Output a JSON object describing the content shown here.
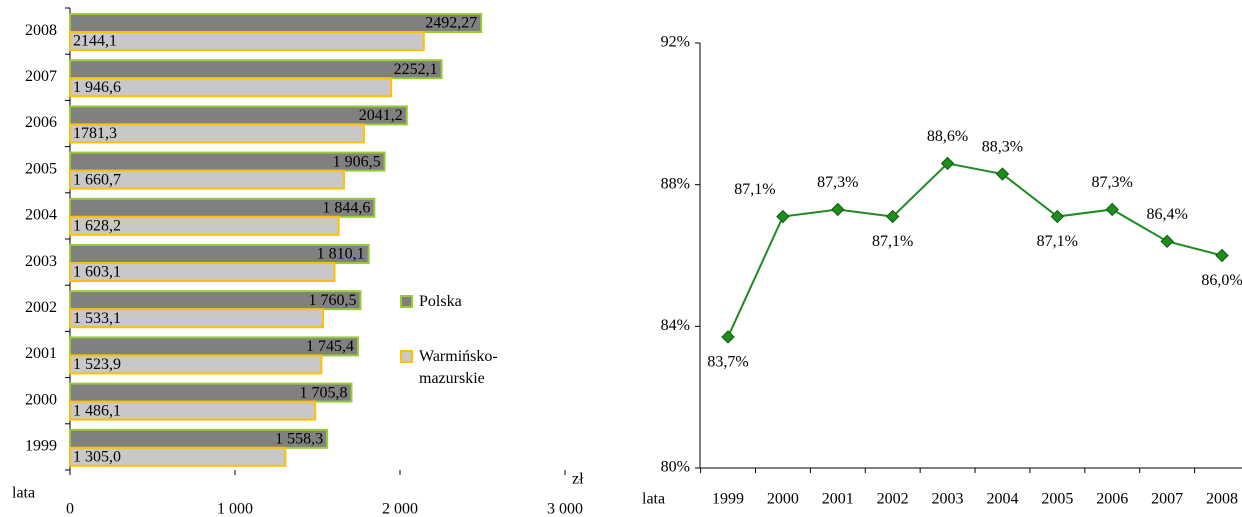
{
  "chart_data": [
    {
      "type": "hbar",
      "categories": [
        "2008",
        "2007",
        "2006",
        "2005",
        "2004",
        "2003",
        "2002",
        "2001",
        "2000",
        "1999"
      ],
      "series": [
        {
          "name": "Polska",
          "color": "#808080",
          "stroke": "#99cc33",
          "values": [
            2492.27,
            2252.1,
            2041.2,
            1906.5,
            1844.6,
            1810.1,
            1760.5,
            1745.4,
            1705.8,
            1558.3
          ],
          "value_labels": [
            "2492,27",
            "2252,1",
            "2041,2",
            "1 906,5",
            "1 844,6",
            "1 810,1",
            "1 760,5",
            "1 745,4",
            "1 705,8",
            "1 558,3"
          ]
        },
        {
          "name": "Warmińsko-mazurskie",
          "color": "#c8c8c8",
          "stroke": "#ffc000",
          "values": [
            2144.1,
            1946.6,
            1781.3,
            1660.7,
            1628.2,
            1603.1,
            1533.1,
            1523.9,
            1486.1,
            1305.0
          ],
          "value_labels": [
            "2144,1",
            "1 946,6",
            "1781,3",
            "1 660,7",
            "1 628,2",
            "1 603,1",
            "1 533,1",
            "1 523,9",
            "1 486,1",
            "1 305,0"
          ]
        }
      ],
      "xlim": [
        0,
        3000
      ],
      "xticks": [
        0,
        {
          "value": 1000,
          "label": "1 000"
        },
        {
          "value": 2000,
          "label": "2 000"
        },
        {
          "value": 3000,
          "label": "3 000"
        }
      ],
      "x_label": "zł",
      "y_label": "lata",
      "legend": "right"
    },
    {
      "type": "line",
      "categories": [
        "1999",
        "2000",
        "2001",
        "2002",
        "2003",
        "2004",
        "2005",
        "2006",
        "2007",
        "2008"
      ],
      "values": [
        83.7,
        87.1,
        87.3,
        87.1,
        88.6,
        88.3,
        87.1,
        87.3,
        86.4,
        86.0
      ],
      "value_labels": [
        "83,7%",
        "87,1%",
        "87,3%",
        "87,1%",
        "88,6%",
        "88,3%",
        "87,1%",
        "87,3%",
        "86,4%",
        "86,0%"
      ],
      "color": "#1e8c1e",
      "ylim": [
        80,
        92
      ],
      "yticks": [
        {
          "value": 80,
          "label": "80%"
        },
        {
          "value": 84,
          "label": "84%"
        },
        {
          "value": 88,
          "label": "88%"
        },
        {
          "value": 92,
          "label": "92%"
        }
      ],
      "x_label": "lata"
    }
  ]
}
